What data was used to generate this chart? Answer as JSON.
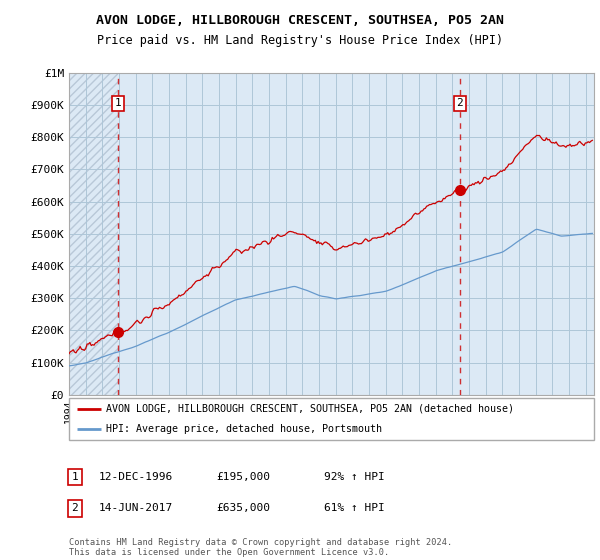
{
  "title": "AVON LODGE, HILLBOROUGH CRESCENT, SOUTHSEA, PO5 2AN",
  "subtitle": "Price paid vs. HM Land Registry's House Price Index (HPI)",
  "red_label": "AVON LODGE, HILLBOROUGH CRESCENT, SOUTHSEA, PO5 2AN (detached house)",
  "blue_label": "HPI: Average price, detached house, Portsmouth",
  "annotation1": {
    "num": "1",
    "date": "12-DEC-1996",
    "price": "£195,000",
    "pct": "92% ↑ HPI"
  },
  "annotation2": {
    "num": "2",
    "date": "14-JUN-2017",
    "price": "£635,000",
    "pct": "61% ↑ HPI"
  },
  "footnote": "Contains HM Land Registry data © Crown copyright and database right 2024.\nThis data is licensed under the Open Government Licence v3.0.",
  "red_color": "#cc0000",
  "blue_color": "#6699cc",
  "bg_color": "#dce9f5",
  "hatch_color": "#b8c8d8",
  "grid_color": "#aec6d8",
  "ylim": [
    0,
    1000000
  ],
  "yticks": [
    0,
    100000,
    200000,
    300000,
    400000,
    500000,
    600000,
    700000,
    800000,
    900000,
    1000000
  ],
  "ytick_labels": [
    "£0",
    "£100K",
    "£200K",
    "£300K",
    "£400K",
    "£500K",
    "£600K",
    "£700K",
    "£800K",
    "£900K",
    "£1M"
  ],
  "xlim_start": 1994.0,
  "xlim_end": 2025.5,
  "sale1_x": 1996.95,
  "sale1_y": 195000,
  "sale2_x": 2017.45,
  "sale2_y": 635000
}
